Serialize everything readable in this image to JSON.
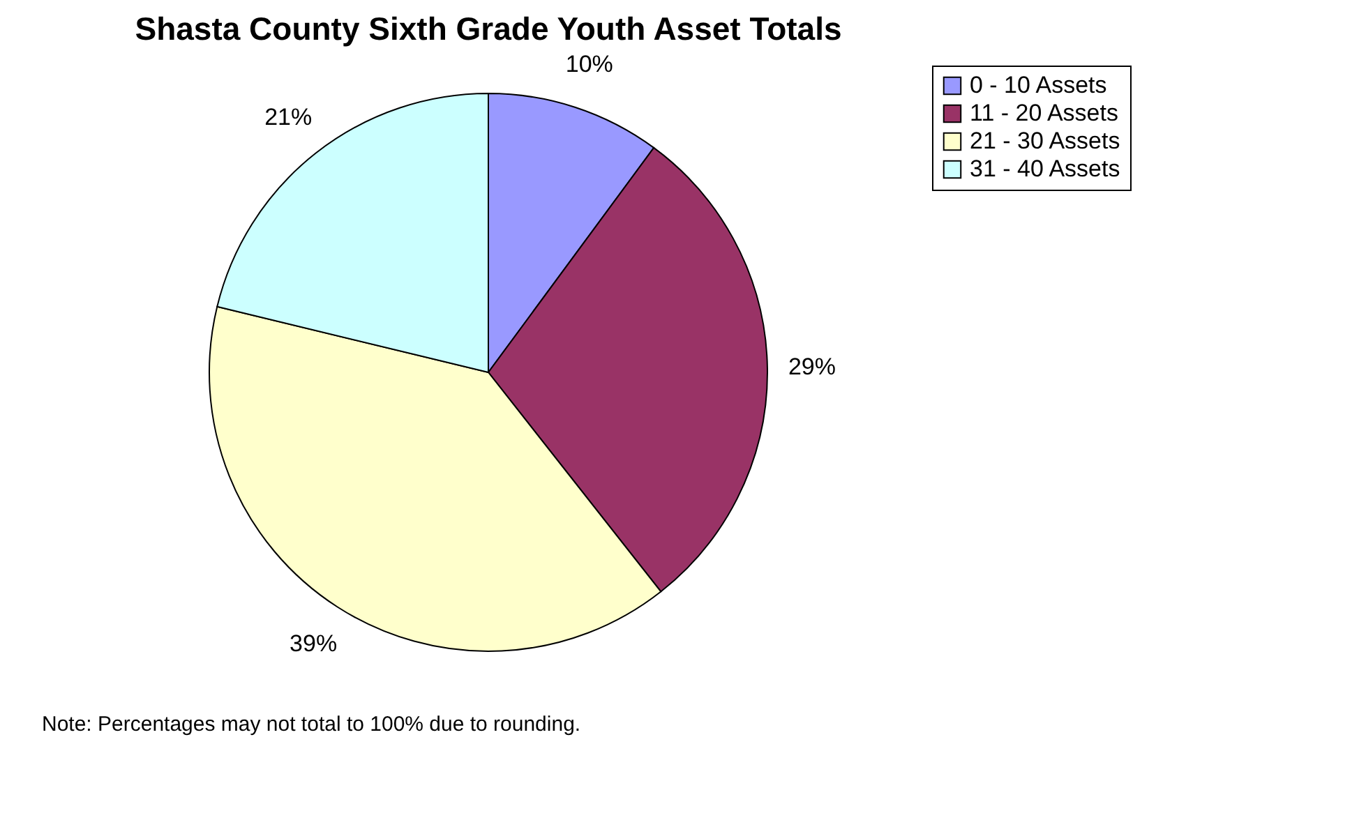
{
  "chart_data": {
    "type": "pie",
    "title": "Shasta County Sixth Grade Youth Asset Totals",
    "categories": [
      "0 - 10 Assets",
      "11 - 20 Assets",
      "21 - 30 Assets",
      "31 - 40 Assets"
    ],
    "values": [
      10,
      29,
      39,
      21
    ],
    "colors": [
      "#9999ff",
      "#993366",
      "#ffffcc",
      "#ccffff"
    ],
    "value_labels": [
      "10%",
      "29%",
      "39%",
      "21%"
    ],
    "legend": "right",
    "annotations": [
      "Note: Percentages may not total to 100% due to rounding."
    ]
  }
}
